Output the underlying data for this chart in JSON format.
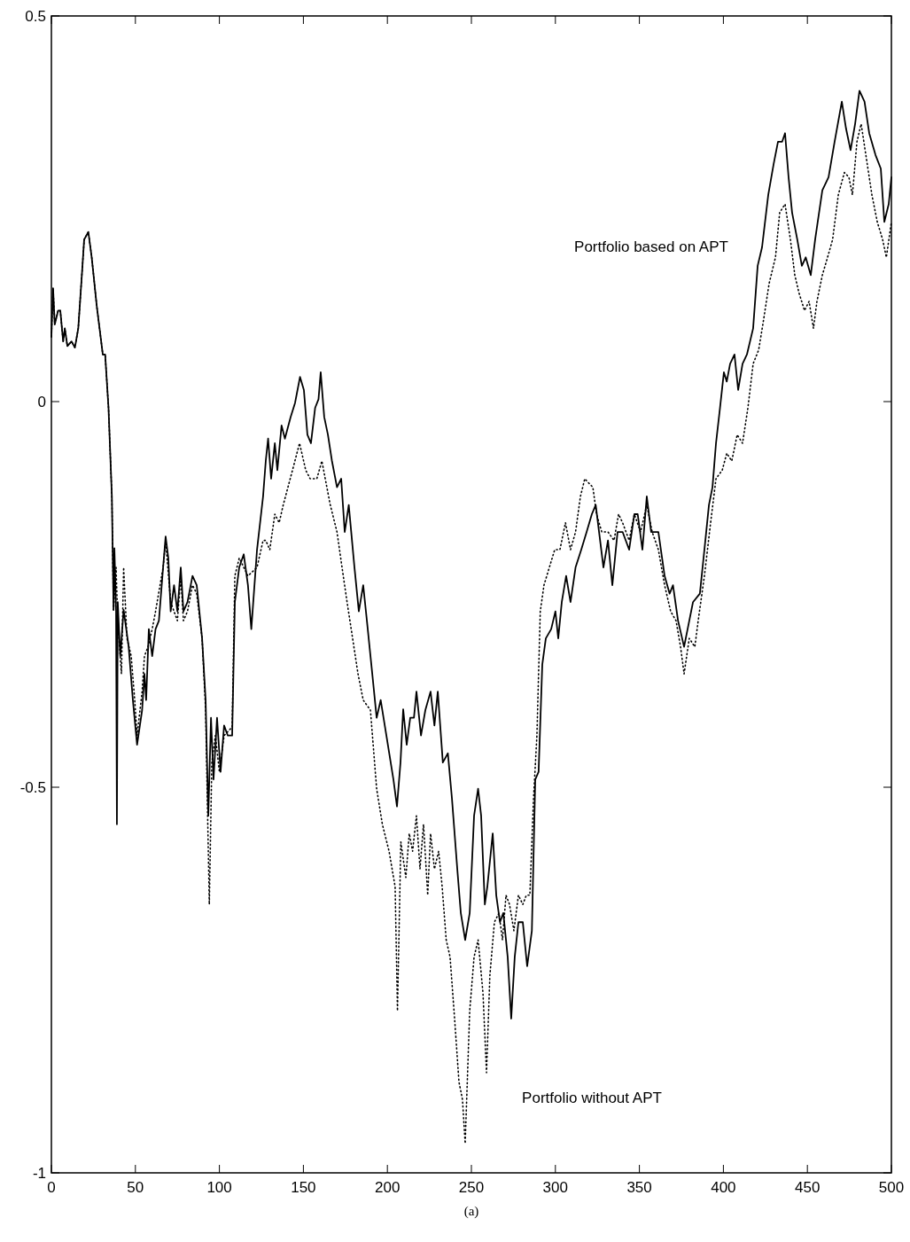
{
  "chart_data": {
    "type": "line",
    "xlim": [
      0,
      500
    ],
    "ylim": [
      -1,
      0.5
    ],
    "xticks": [
      0,
      50,
      100,
      150,
      200,
      250,
      300,
      350,
      400,
      450,
      500
    ],
    "yticks": [
      -1,
      -0.5,
      0,
      0.5
    ],
    "grid": false,
    "marker": "none",
    "series": [
      {
        "name": "Portfolio based on APT",
        "color": "#000000",
        "line_style": "solid",
        "x": [
          0,
          1,
          2,
          4,
          5.3,
          7,
          8,
          9.5,
          12,
          14,
          16,
          18.5,
          19.5,
          22,
          24,
          27,
          30.6,
          32,
          34,
          36,
          37,
          37.5,
          38.5,
          39,
          39.5,
          41,
          43,
          46,
          48.5,
          51,
          54,
          55.4,
          56.4,
          58,
          60,
          62,
          64,
          66.5,
          68,
          69.6,
          71,
          73,
          75,
          77,
          78.6,
          81,
          84,
          86.5,
          89.7,
          91.8,
          93.4,
          95,
          96.5,
          98.6,
          100.7,
          102.8,
          105,
          107.6,
          109.2,
          111.8,
          114.5,
          117,
          119,
          122.4,
          126,
          127.6,
          129,
          130.8,
          133,
          134.5,
          137,
          139,
          142.4,
          145,
          148,
          150.3,
          152.4,
          154.5,
          157,
          159,
          160.3,
          162.4,
          164.6,
          167,
          170,
          172.5,
          174.6,
          177,
          180.4,
          183,
          185.6,
          187.8,
          191,
          193.6,
          196,
          199.4,
          203.6,
          205.7,
          207.8,
          209.4,
          211.5,
          213.6,
          215.8,
          217.3,
          220,
          222.6,
          225.7,
          228,
          230,
          233,
          236,
          238.4,
          241.6,
          243.7,
          246.3,
          249,
          251.6,
          254,
          255.8,
          258,
          259.5,
          262.7,
          264.8,
          267,
          269,
          271.6,
          273.7,
          275.8,
          278,
          280.6,
          283.2,
          286,
          288,
          290,
          292.2,
          294.3,
          297.5,
          300,
          301.7,
          303.8,
          306.4,
          309,
          312,
          315.4,
          318.6,
          321.7,
          324,
          326,
          328.6,
          331.3,
          333.9,
          337,
          340,
          343.9,
          347,
          349,
          351.8,
          354.4,
          357,
          359,
          361.3,
          365,
          368,
          370,
          373,
          376.6,
          379.7,
          381.9,
          386,
          388.7,
          391.4,
          393.5,
          395.6,
          398,
          400.3,
          402,
          404,
          406.6,
          408.8,
          411.4,
          414,
          417.7,
          420.4,
          423,
          426.7,
          429.9,
          432.5,
          435,
          436.7,
          438.8,
          440.9,
          444,
          446.7,
          449,
          452,
          454.6,
          458.9,
          462.6,
          466.2,
          470.5,
          473,
          475.7,
          478.4,
          481,
          484,
          486.8,
          490.5,
          493.7,
          495.8,
          498.4,
          500
        ],
        "values": [
          0.084,
          0.147,
          0.1,
          0.118,
          0.118,
          0.078,
          0.095,
          0.072,
          0.078,
          0.07,
          0.095,
          0.176,
          0.21,
          0.22,
          0.187,
          0.124,
          0.061,
          0.061,
          -0.008,
          -0.123,
          -0.27,
          -0.19,
          -0.272,
          -0.548,
          -0.26,
          -0.33,
          -0.27,
          -0.318,
          -0.387,
          -0.445,
          -0.4,
          -0.353,
          -0.387,
          -0.295,
          -0.33,
          -0.295,
          -0.284,
          -0.215,
          -0.175,
          -0.203,
          -0.272,
          -0.238,
          -0.272,
          -0.215,
          -0.272,
          -0.26,
          -0.226,
          -0.238,
          -0.307,
          -0.387,
          -0.537,
          -0.41,
          -0.49,
          -0.41,
          -0.48,
          -0.42,
          -0.433,
          -0.433,
          -0.26,
          -0.215,
          -0.198,
          -0.238,
          -0.295,
          -0.192,
          -0.123,
          -0.077,
          -0.048,
          -0.1,
          -0.054,
          -0.089,
          -0.031,
          -0.048,
          -0.02,
          -0.002,
          0.032,
          0.015,
          -0.043,
          -0.054,
          -0.008,
          0.003,
          0.038,
          -0.02,
          -0.043,
          -0.077,
          -0.111,
          -0.1,
          -0.169,
          -0.134,
          -0.215,
          -0.272,
          -0.238,
          -0.284,
          -0.353,
          -0.41,
          -0.387,
          -0.433,
          -0.49,
          -0.525,
          -0.468,
          -0.399,
          -0.445,
          -0.41,
          -0.41,
          -0.376,
          -0.433,
          -0.4,
          -0.376,
          -0.42,
          -0.376,
          -0.468,
          -0.456,
          -0.514,
          -0.606,
          -0.663,
          -0.698,
          -0.663,
          -0.537,
          -0.502,
          -0.537,
          -0.652,
          -0.629,
          -0.56,
          -0.64,
          -0.675,
          -0.663,
          -0.72,
          -0.8,
          -0.72,
          -0.675,
          -0.675,
          -0.732,
          -0.686,
          -0.49,
          -0.48,
          -0.341,
          -0.307,
          -0.295,
          -0.272,
          -0.307,
          -0.26,
          -0.226,
          -0.26,
          -0.215,
          -0.192,
          -0.169,
          -0.146,
          -0.134,
          -0.169,
          -0.215,
          -0.18,
          -0.238,
          -0.169,
          -0.169,
          -0.192,
          -0.146,
          -0.146,
          -0.192,
          -0.123,
          -0.169,
          -0.169,
          -0.169,
          -0.226,
          -0.249,
          -0.238,
          -0.284,
          -0.318,
          -0.284,
          -0.26,
          -0.249,
          -0.192,
          -0.134,
          -0.111,
          -0.054,
          -0.008,
          0.038,
          0.026,
          0.049,
          0.061,
          0.015,
          0.049,
          0.061,
          0.095,
          0.176,
          0.2,
          0.268,
          0.308,
          0.337,
          0.337,
          0.348,
          0.291,
          0.245,
          0.21,
          0.176,
          0.187,
          0.164,
          0.21,
          0.274,
          0.291,
          0.337,
          0.389,
          0.354,
          0.326,
          0.36,
          0.403,
          0.389,
          0.348,
          0.32,
          0.302,
          0.233,
          0.256,
          0.291
        ]
      },
      {
        "name": "Portfolio without APT",
        "color": "#000000",
        "line_style": "dotted",
        "x": [
          0,
          1,
          2,
          4,
          5.3,
          7,
          8,
          9.5,
          12,
          14,
          16,
          18.5,
          19.5,
          22,
          24,
          27,
          30.6,
          32,
          34,
          36,
          37,
          38.5,
          39.5,
          41.7,
          43,
          45,
          47.5,
          49.6,
          51,
          54,
          55.4,
          57.5,
          60,
          62,
          66.5,
          68,
          71,
          75,
          77,
          78.6,
          81,
          84,
          86.5,
          89.7,
          91.8,
          94,
          95.5,
          97.6,
          100,
          102.8,
          107.6,
          109.2,
          111.8,
          117,
          122.4,
          126,
          127.6,
          130,
          133,
          135.6,
          138,
          143.5,
          147.7,
          151.4,
          154,
          158,
          161,
          163,
          166,
          170,
          173,
          176,
          179.3,
          182.5,
          185.6,
          189.9,
          193.6,
          197,
          201,
          204.6,
          206,
          208,
          211,
          213,
          215,
          217.3,
          219.4,
          221.5,
          224,
          225.7,
          228,
          230.5,
          232.6,
          235,
          237.3,
          240,
          242.6,
          244.7,
          246.3,
          249,
          251.6,
          254,
          256.9,
          259,
          261,
          263.7,
          266.4,
          268.5,
          270.6,
          272.7,
          275.3,
          278,
          280.6,
          282.7,
          284.8,
          287,
          289,
          291,
          293.2,
          296.4,
          299.6,
          302.7,
          306,
          309,
          312,
          314.9,
          317.5,
          320,
          322.3,
          324.5,
          327.6,
          331.3,
          334.9,
          337.6,
          340,
          343.9,
          347,
          350.7,
          354.4,
          357.6,
          361.3,
          365,
          368.6,
          371.8,
          374.5,
          376.6,
          379.7,
          383,
          385,
          388.7,
          392.4,
          395.6,
          399.3,
          402,
          405,
          408.2,
          411.4,
          414.6,
          417.7,
          421,
          424,
          427.2,
          431,
          433.5,
          436.7,
          439.9,
          442.5,
          445,
          448.3,
          451,
          453.6,
          455.7,
          458.9,
          462,
          465,
          468.4,
          472,
          474.7,
          476.8,
          479.5,
          482,
          485.2,
          488.4,
          491.6,
          494.8,
          497,
          500
        ],
        "values": [
          0.084,
          0.147,
          0.1,
          0.118,
          0.118,
          0.078,
          0.095,
          0.072,
          0.078,
          0.07,
          0.095,
          0.176,
          0.21,
          0.22,
          0.187,
          0.124,
          0.061,
          0.061,
          -0.008,
          -0.123,
          -0.27,
          -0.215,
          -0.284,
          -0.353,
          -0.215,
          -0.307,
          -0.33,
          -0.387,
          -0.433,
          -0.376,
          -0.33,
          -0.318,
          -0.295,
          -0.272,
          -0.215,
          -0.181,
          -0.26,
          -0.284,
          -0.226,
          -0.284,
          -0.272,
          -0.238,
          -0.249,
          -0.307,
          -0.399,
          -0.652,
          -0.468,
          -0.433,
          -0.48,
          -0.433,
          -0.422,
          -0.226,
          -0.203,
          -0.226,
          -0.215,
          -0.18,
          -0.18,
          -0.192,
          -0.146,
          -0.157,
          -0.134,
          -0.089,
          -0.054,
          -0.089,
          -0.1,
          -0.1,
          -0.077,
          -0.1,
          -0.134,
          -0.169,
          -0.215,
          -0.26,
          -0.307,
          -0.353,
          -0.387,
          -0.4,
          -0.502,
          -0.548,
          -0.583,
          -0.629,
          -0.79,
          -0.571,
          -0.617,
          -0.56,
          -0.583,
          -0.537,
          -0.606,
          -0.548,
          -0.64,
          -0.56,
          -0.606,
          -0.583,
          -0.629,
          -0.698,
          -0.72,
          -0.8,
          -0.882,
          -0.905,
          -0.962,
          -0.79,
          -0.72,
          -0.698,
          -0.767,
          -0.87,
          -0.744,
          -0.675,
          -0.663,
          -0.698,
          -0.64,
          -0.652,
          -0.686,
          -0.64,
          -0.652,
          -0.64,
          -0.64,
          -0.514,
          -0.433,
          -0.272,
          -0.238,
          -0.215,
          -0.192,
          -0.192,
          -0.157,
          -0.192,
          -0.169,
          -0.123,
          -0.1,
          -0.106,
          -0.111,
          -0.146,
          -0.169,
          -0.169,
          -0.18,
          -0.146,
          -0.157,
          -0.18,
          -0.146,
          -0.169,
          -0.134,
          -0.169,
          -0.192,
          -0.238,
          -0.272,
          -0.284,
          -0.318,
          -0.353,
          -0.307,
          -0.318,
          -0.284,
          -0.226,
          -0.157,
          -0.1,
          -0.089,
          -0.067,
          -0.077,
          -0.043,
          -0.054,
          -0.008,
          0.049,
          0.067,
          0.107,
          0.153,
          0.187,
          0.245,
          0.256,
          0.21,
          0.164,
          0.141,
          0.118,
          0.13,
          0.095,
          0.13,
          0.164,
          0.187,
          0.21,
          0.268,
          0.297,
          0.291,
          0.268,
          0.337,
          0.36,
          0.314,
          0.268,
          0.233,
          0.21,
          0.187,
          0.233
        ]
      }
    ],
    "annotations": [
      "(a)"
    ]
  }
}
